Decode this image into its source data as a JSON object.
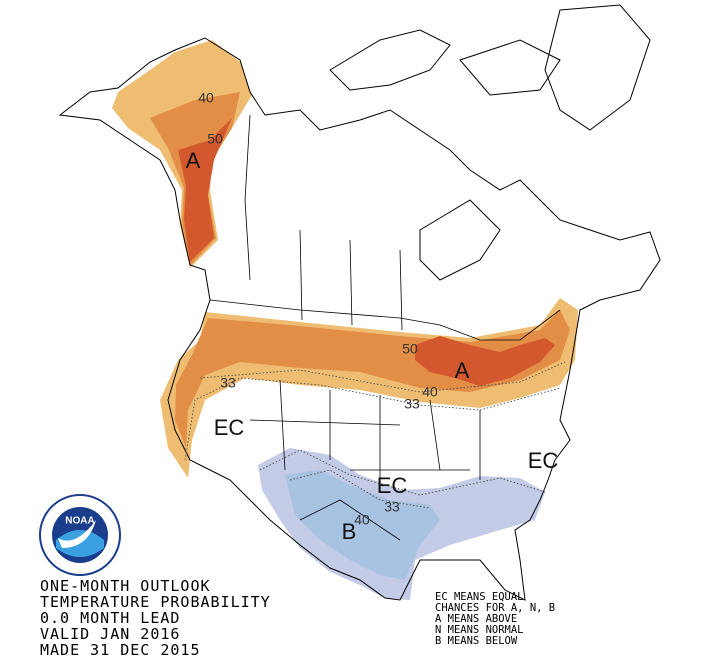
{
  "map_labels": [
    "40",
    "50",
    "A",
    "50",
    "A",
    "40",
    "33",
    "33",
    "EC",
    "EC",
    "EC",
    "33",
    "40",
    "B"
  ],
  "logo": {
    "name": "NOAA"
  },
  "title_lines": [
    "ONE-MONTH OUTLOOK",
    "TEMPERATURE PROBABILITY",
    "0.0 MONTH LEAD",
    "VALID JAN 2016",
    "MADE 31 DEC 2015"
  ],
  "legend_lines": [
    "EC MEANS EQUAL",
    "CHANCES FOR A, N, B",
    "A MEANS ABOVE",
    "N MEANS NORMAL",
    "B MEANS BELOW"
  ]
}
